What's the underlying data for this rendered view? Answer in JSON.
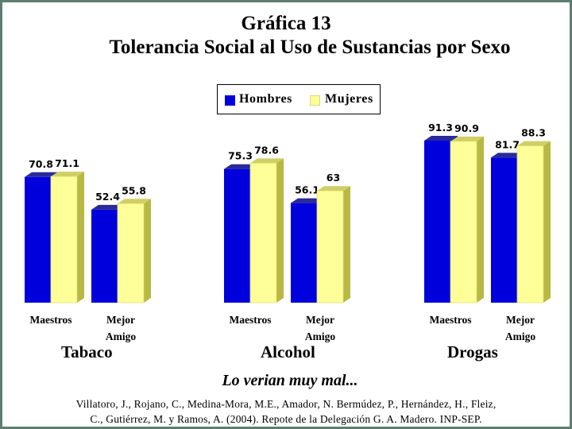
{
  "title": "Gráfica 13",
  "subtitle": "Tolerancia Social al Uso de Sustancias por Sexo",
  "legend": [
    "Hombres",
    "Mujeres"
  ],
  "colors": {
    "hombres": "#0000dd",
    "hombres_side": "#000080",
    "hombres_top": "#2a2a9a",
    "mujeres": "#ffff99",
    "mujeres_side": "#b8b845",
    "mujeres_top": "#cfcf66",
    "border": "#5d7e6f"
  },
  "footer_phrase": "Lo verian muy mal...",
  "citation": [
    "Villatoro, J., Rojano, C., Medina-Mora, M.E., Amador, N. Bermúdez, P., Hernández, H., Fleiz,",
    "C., Gutiérrez, M. y Ramos, A. (2004). Repote de la Delegación G. A. Madero. INP-SEP."
  ],
  "chart_data": {
    "type": "bar",
    "groups": [
      {
        "name": "Tabaco",
        "categories": [
          "Maestros",
          "Mejor Amigo"
        ],
        "series": [
          {
            "name": "Hombres",
            "values": [
              70.8,
              52.4
            ]
          },
          {
            "name": "Mujeres",
            "values": [
              71.1,
              55.8
            ]
          }
        ]
      },
      {
        "name": "Alcohol",
        "categories": [
          "Maestros",
          "Mejor Amigo"
        ],
        "series": [
          {
            "name": "Hombres",
            "values": [
              75.3,
              56.1
            ]
          },
          {
            "name": "Mujeres",
            "values": [
              78.6,
              63
            ]
          }
        ]
      },
      {
        "name": "Drogas",
        "categories": [
          "Maestros",
          "Mejor Amigo"
        ],
        "series": [
          {
            "name": "Hombres",
            "values": [
              91.3,
              81.7
            ]
          },
          {
            "name": "Mujeres",
            "values": [
              90.9,
              88.3
            ]
          }
        ]
      }
    ],
    "category_labels": [
      [
        "Maestros"
      ],
      [
        "Mejor",
        "Amigo"
      ]
    ],
    "ylim": [
      0,
      100
    ],
    "grid": false,
    "legend_position": "top-center",
    "data_labels": true
  }
}
